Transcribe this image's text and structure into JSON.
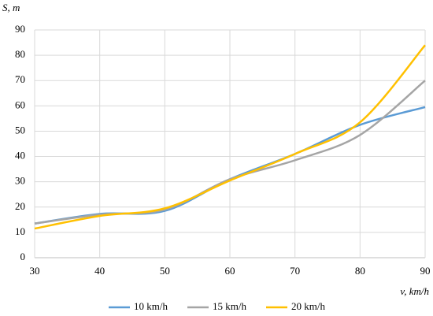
{
  "chart_data": {
    "type": "line",
    "y_label": "S, m",
    "x_label": "v, km/h",
    "x": [
      30,
      40,
      50,
      60,
      70,
      80,
      90
    ],
    "series": [
      {
        "name": "10 km/h",
        "color": "#5b9bd5",
        "values": [
          13.5,
          17.3,
          18.5,
          31,
          41,
          52.5,
          59.5
        ]
      },
      {
        "name": "15 km/h",
        "color": "#a5a5a5",
        "values": [
          13.5,
          17,
          19,
          31,
          38.5,
          48.5,
          70
        ]
      },
      {
        "name": "20 km/h",
        "color": "#ffc000",
        "values": [
          11.5,
          16.5,
          19.5,
          30.5,
          41,
          53.5,
          84
        ]
      }
    ],
    "xlim": [
      30,
      90
    ],
    "xticks": [
      30,
      40,
      50,
      60,
      70,
      80,
      90
    ],
    "ylim": [
      0,
      90
    ],
    "yticks": [
      0,
      10,
      20,
      30,
      40,
      50,
      60,
      70,
      80,
      90
    ],
    "grid": true,
    "smooth": true,
    "legend": "bottom"
  }
}
